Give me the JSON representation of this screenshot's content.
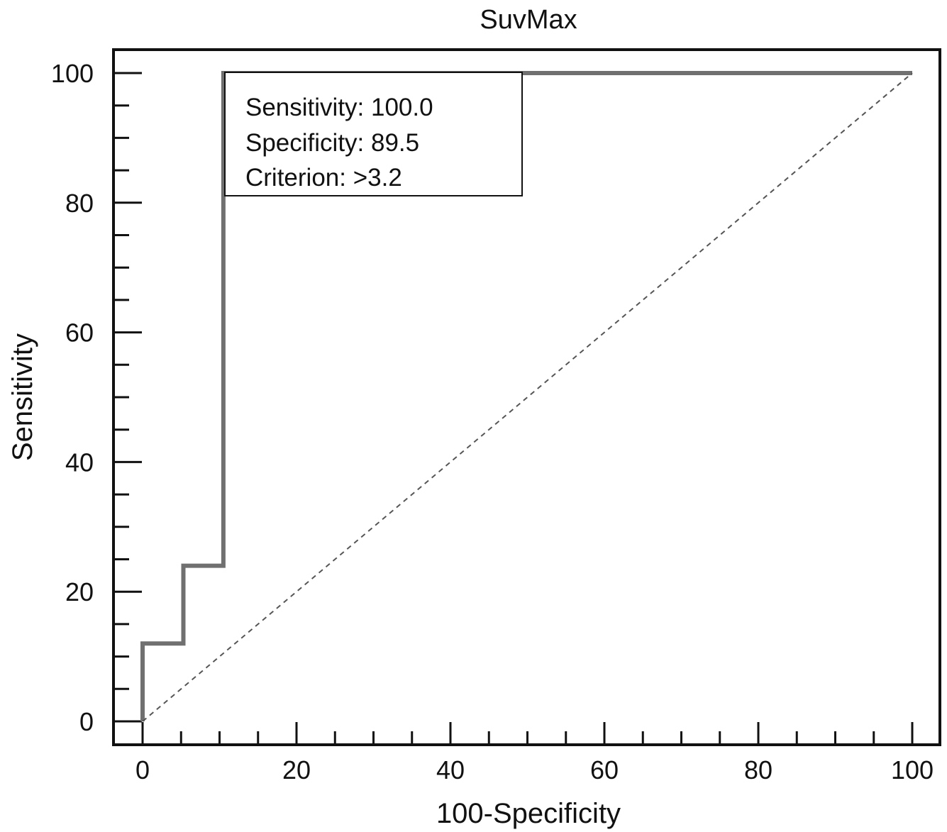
{
  "chart_data": {
    "type": "line",
    "title": "SuvMax",
    "xlabel": "100-Specificity",
    "ylabel": "Sensitivity",
    "xlim": [
      0,
      100
    ],
    "ylim": [
      0,
      100
    ],
    "x_ticks": [
      "0",
      "20",
      "40",
      "60",
      "80",
      "100"
    ],
    "y_ticks": [
      "0",
      "20",
      "40",
      "60",
      "80",
      "100"
    ],
    "grid": false,
    "series": [
      {
        "style": "step",
        "color": "#707070",
        "points": [
          [
            0,
            0
          ],
          [
            0,
            12
          ],
          [
            5.3,
            12
          ],
          [
            5.3,
            24
          ],
          [
            10.5,
            24
          ],
          [
            10.5,
            100
          ],
          [
            100,
            100
          ]
        ]
      },
      {
        "style": "dashed",
        "color": "#555555",
        "points": [
          [
            0,
            0
          ],
          [
            100,
            100
          ]
        ]
      }
    ],
    "annotation": {
      "lines": [
        "Sensitivity: 100.0",
        "Specificity: 89.5",
        "Criterion: >3.2"
      ]
    }
  }
}
